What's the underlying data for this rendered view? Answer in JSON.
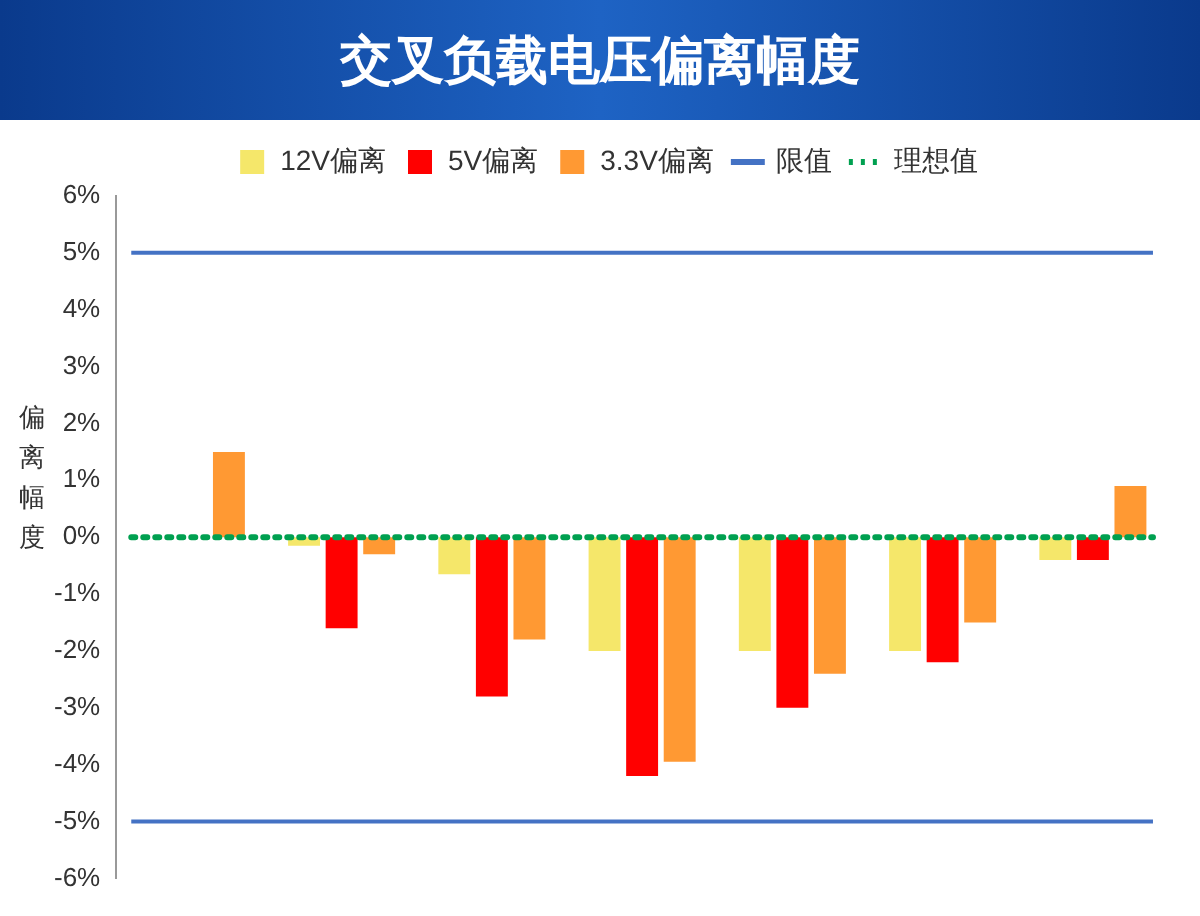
{
  "chart_data": {
    "type": "bar",
    "title": "交叉负载电压偏离幅度",
    "ylabel": "偏离幅度",
    "categories": [
      null,
      null,
      null,
      null,
      null,
      null,
      null
    ],
    "series": [
      {
        "name": "12V偏离",
        "color": "#f5e76a",
        "values": [
          0,
          -0.15,
          -0.65,
          -2,
          -2,
          -2,
          -0.4
        ]
      },
      {
        "name": "5V偏离",
        "color": "#ff0000",
        "values": [
          0,
          -1.6,
          -2.8,
          -4.2,
          -3,
          -2.2,
          -0.4
        ]
      },
      {
        "name": "3.3V偏离",
        "color": "#ff9933",
        "values": [
          1.5,
          -0.3,
          -1.8,
          -3.95,
          -2.4,
          -1.5,
          0.9
        ]
      }
    ],
    "ref_lines": [
      {
        "axis": "y",
        "value": 5,
        "label": "限值",
        "color": "#4472c4",
        "line_style": "solid"
      },
      {
        "axis": "y",
        "value": -5,
        "color": "#4472c4",
        "line_style": "solid"
      },
      {
        "axis": "y",
        "value": 0,
        "label": "理想值",
        "color": "#00a050",
        "line_style": "dotted"
      }
    ],
    "ylim": [
      -6,
      6
    ],
    "yticks": [
      {
        "value": -6,
        "label": "-6%"
      },
      {
        "value": -5,
        "label": "-5%"
      },
      {
        "value": -4,
        "label": "-4%"
      },
      {
        "value": -3,
        "label": "-3%"
      },
      {
        "value": -2,
        "label": "-2%"
      },
      {
        "value": -1,
        "label": "-1%"
      },
      {
        "value": 0,
        "label": "0%"
      },
      {
        "value": 1,
        "label": "1%"
      },
      {
        "value": 2,
        "label": "2%"
      },
      {
        "value": 3,
        "label": "3%"
      },
      {
        "value": 4,
        "label": "4%"
      },
      {
        "value": 5,
        "label": "5%"
      },
      {
        "value": 6,
        "label": "6%"
      }
    ],
    "grid": false,
    "legend": "top"
  }
}
